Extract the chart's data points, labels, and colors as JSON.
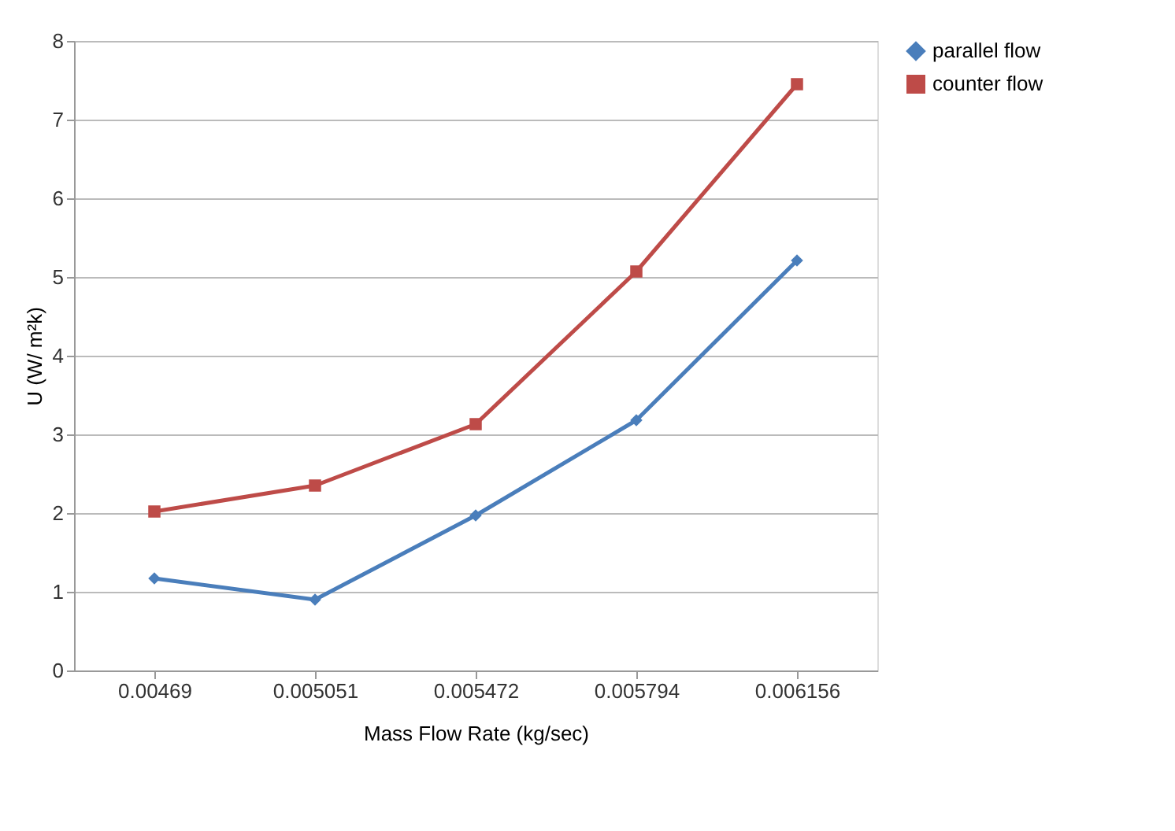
{
  "chart_data": {
    "type": "line",
    "xlabel": "Mass Flow Rate (kg/sec)",
    "ylabel": "U (W/ m²k)",
    "categories": [
      "0.00469",
      "0.005051",
      "0.005472",
      "0.005794",
      "0.006156"
    ],
    "series": [
      {
        "name": "parallel flow",
        "color": "#4a7ebb",
        "marker": "diamond",
        "values": [
          1.17,
          0.9,
          1.97,
          3.18,
          5.21
        ]
      },
      {
        "name": "counter flow",
        "color": "#be4b48",
        "marker": "square",
        "values": [
          2.02,
          2.35,
          3.13,
          5.07,
          7.45
        ]
      }
    ],
    "ylim": [
      0,
      8
    ],
    "yticks": [
      0,
      1,
      2,
      3,
      4,
      5,
      6,
      7,
      8
    ],
    "grid": "y",
    "legend": "right",
    "line_style": "solid"
  }
}
